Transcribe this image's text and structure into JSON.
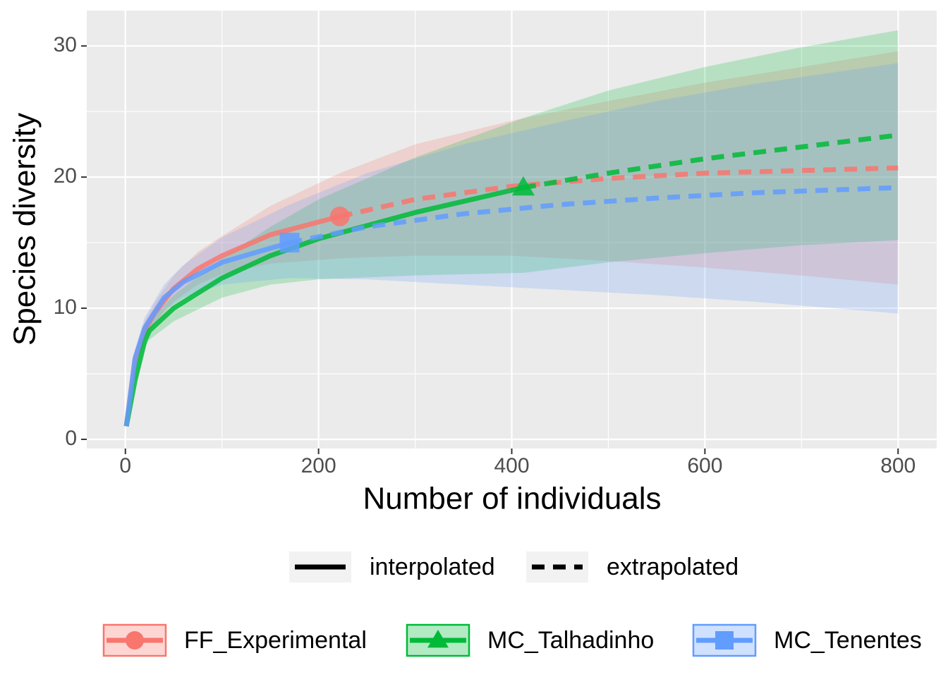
{
  "chart_data": {
    "type": "rarefaction",
    "xlabel": "Number of individuals",
    "ylabel": "Species diversity",
    "xlim": [
      -40,
      840
    ],
    "ylim": [
      -0.7,
      32.7
    ],
    "xticks": [
      0,
      200,
      400,
      600,
      800
    ],
    "yticks": [
      0,
      10,
      20,
      30
    ],
    "xminor": [
      100,
      300,
      500,
      700
    ],
    "yminor": [
      5,
      15,
      25
    ],
    "grid": true,
    "linetypes": [
      "interpolated",
      "extrapolated"
    ],
    "series": [
      {
        "name": "FF_Experimental",
        "color": "#F8766D",
        "shape": "circle",
        "observed_x": 222,
        "x": [
          1,
          10,
          20,
          30,
          50,
          75,
          100,
          150,
          222,
          300,
          400,
          500,
          600,
          700,
          800
        ],
        "values": [
          1,
          6,
          8.3,
          9.6,
          11.5,
          13,
          14,
          15.6,
          17,
          18.3,
          19.3,
          19.9,
          20.3,
          20.5,
          20.7
        ],
        "lower": [
          1,
          5.5,
          7.6,
          8.8,
          10.5,
          11.8,
          12.6,
          13.4,
          13.8,
          14,
          14,
          13.6,
          13.1,
          12.5,
          11.8
        ],
        "upper": [
          1,
          6.5,
          9,
          10.4,
          12.5,
          14.3,
          15.5,
          17.8,
          20.3,
          22.5,
          24.3,
          25.8,
          27.2,
          28.4,
          29.6
        ]
      },
      {
        "name": "MC_Talhadinho",
        "color": "#00BA38",
        "shape": "triangle",
        "observed_x": 412,
        "x": [
          1,
          10,
          20,
          25,
          50,
          100,
          150,
          200,
          300,
          412,
          500,
          600,
          700,
          800
        ],
        "values": [
          1,
          4.5,
          7.5,
          8.3,
          10,
          12.3,
          14,
          15.3,
          17.3,
          19.2,
          20.3,
          21.4,
          22.3,
          23.2
        ],
        "lower": [
          1,
          4,
          7,
          7.6,
          9,
          10.8,
          11.8,
          12.2,
          12.5,
          12.7,
          13.5,
          14.2,
          14.8,
          15.2
        ],
        "upper": [
          1,
          5,
          8,
          9,
          11,
          13.8,
          16.2,
          18.3,
          21.5,
          24.5,
          26.6,
          28.4,
          29.9,
          31.2
        ]
      },
      {
        "name": "MC_Tenentes",
        "color": "#619CFF",
        "shape": "square",
        "observed_x": 170,
        "x": [
          1,
          10,
          20,
          40,
          60,
          100,
          170,
          250,
          350,
          450,
          550,
          650,
          800
        ],
        "values": [
          1,
          6.2,
          8.5,
          10.8,
          12,
          13.5,
          15,
          16.2,
          17.2,
          17.9,
          18.4,
          18.8,
          19.2
        ],
        "lower": [
          1,
          5.6,
          7.8,
          9.8,
          10.8,
          11.8,
          12.3,
          12.2,
          11.8,
          11.4,
          11,
          10.5,
          9.6
        ],
        "upper": [
          1,
          6.8,
          9.3,
          11.8,
          13.3,
          15.4,
          17.9,
          20.3,
          22.5,
          24.2,
          25.8,
          27.1,
          28.7
        ]
      }
    ]
  }
}
